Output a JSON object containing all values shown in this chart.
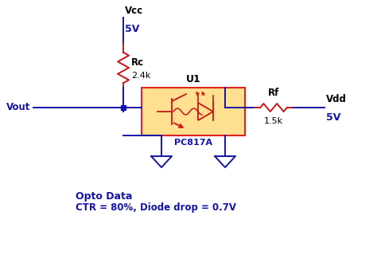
{
  "bg_color": "#ffffff",
  "blue": "#1414AA",
  "red": "#CC1414",
  "orange_box_face": "#FFE090",
  "orange_box_edge": "#DD2222",
  "vcc_label": "Vcc",
  "vcc_val": "5V",
  "rc_label": "Rc",
  "rc_val": "2.4k",
  "vout_label": "Vout",
  "u1_label": "U1",
  "pc_label": "PC817A",
  "rf_label": "Rf",
  "rf_val": "1.5k",
  "vdd_label": "Vdd",
  "vdd_val": "5V",
  "opto_line1": "Opto Data",
  "opto_line2": "CTR = 80%, Diode drop = 0.7V",
  "label_color": "#000000"
}
